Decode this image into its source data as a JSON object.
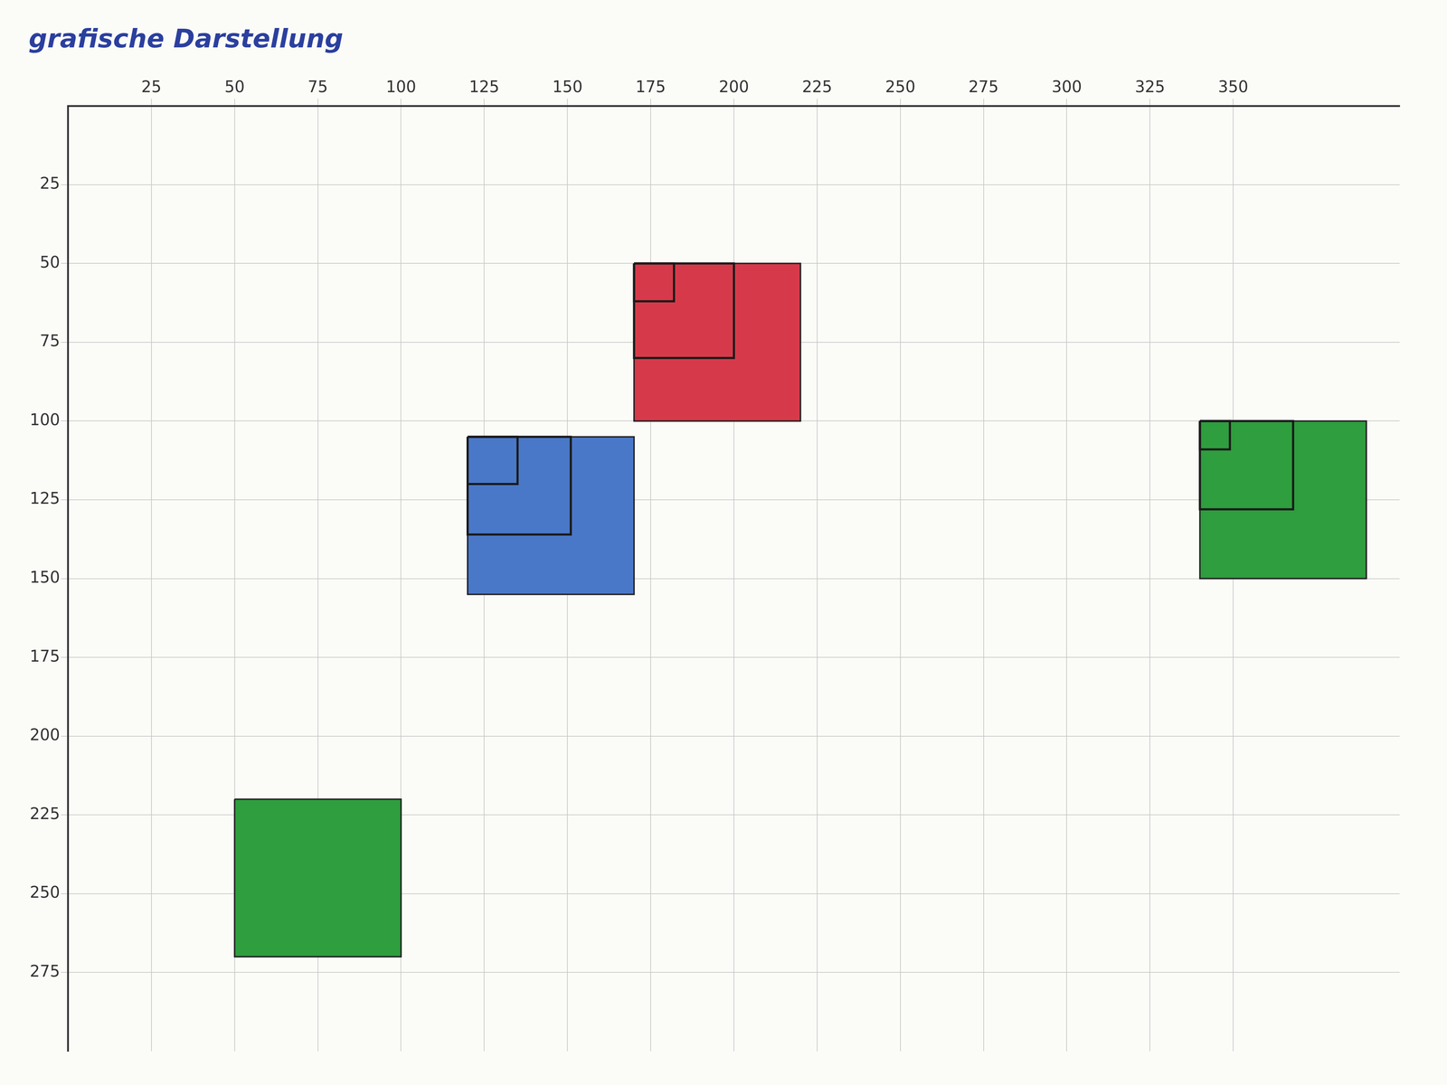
{
  "chart_data": {
    "type": "scatter",
    "title": "grafische Darstellung",
    "shapes": [
      {
        "x": [
          170,
          220
        ],
        "y": [
          50,
          100
        ],
        "color": "#d63a4a",
        "inner_squares": [
          12,
          30
        ]
      },
      {
        "x": [
          120,
          170
        ],
        "y": [
          105,
          155
        ],
        "color": "#4a78c8",
        "inner_squares": [
          15,
          31
        ]
      },
      {
        "x": [
          340,
          390
        ],
        "y": [
          100,
          150
        ],
        "color": "#2e9e3e",
        "inner_squares": [
          9,
          28
        ]
      },
      {
        "x": [
          50,
          100
        ],
        "y": [
          220,
          270
        ],
        "color": "#2e9e3e",
        "inner_squares": []
      }
    ],
    "xlim": [
      0,
      400
    ],
    "xticks": [
      25,
      50,
      75,
      100,
      125,
      150,
      175,
      200,
      225,
      250,
      275,
      300,
      325,
      350
    ],
    "ylim": [
      0,
      300
    ],
    "yticks": [
      25,
      50,
      75,
      100,
      125,
      150,
      175,
      200,
      225,
      250,
      275
    ],
    "grid": true
  }
}
